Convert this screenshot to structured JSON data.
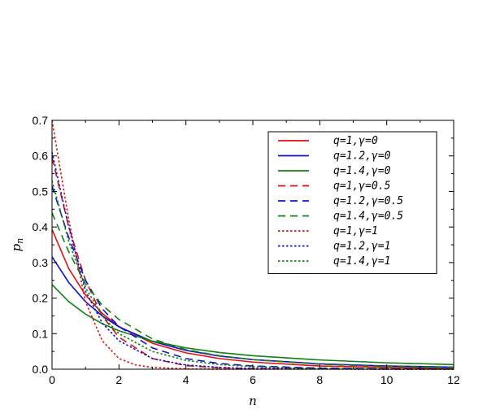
{
  "chart_data": {
    "type": "line",
    "xlabel": "n",
    "ylabel": "p",
    "ylabel_sub": "n",
    "xlim": [
      0,
      12
    ],
    "ylim": [
      0,
      0.7
    ],
    "xticks": [
      {
        "value": 0,
        "label": "0"
      },
      {
        "value": 2,
        "label": "2"
      },
      {
        "value": 4,
        "label": "4"
      },
      {
        "value": 6,
        "label": "6"
      },
      {
        "value": 8,
        "label": "8"
      },
      {
        "value": 10,
        "label": "10"
      },
      {
        "value": 12,
        "label": "12"
      }
    ],
    "yticks": [
      {
        "value": 0,
        "label": "0.0"
      },
      {
        "value": 0.1,
        "label": "0.1"
      },
      {
        "value": 0.2,
        "label": "0.2"
      },
      {
        "value": 0.3,
        "label": "0.3"
      },
      {
        "value": 0.4,
        "label": "0.4"
      },
      {
        "value": 0.5,
        "label": "0.5"
      },
      {
        "value": 0.6,
        "label": "0.6"
      },
      {
        "value": 0.7,
        "label": "0.7"
      }
    ],
    "grid": false,
    "legend_position": "top-right",
    "series": [
      {
        "name": "q=1,γ=0",
        "color": "#e01010",
        "dash": "solid",
        "x": [
          0,
          0.5,
          1,
          1.5,
          2,
          3,
          4,
          5,
          6,
          8,
          10,
          12
        ],
        "y": [
          0.393,
          0.283,
          0.209,
          0.157,
          0.12,
          0.073,
          0.046,
          0.03,
          0.02,
          0.009,
          0.005,
          0.002
        ]
      },
      {
        "name": "q=1.2,γ=0",
        "color": "#1010d0",
        "dash": "solid",
        "x": [
          0,
          0.5,
          1,
          1.5,
          2,
          3,
          4,
          5,
          6,
          8,
          10,
          12
        ],
        "y": [
          0.316,
          0.244,
          0.19,
          0.15,
          0.119,
          0.078,
          0.053,
          0.037,
          0.027,
          0.015,
          0.009,
          0.006
        ]
      },
      {
        "name": "q=1.4,γ=0",
        "color": "#108010",
        "dash": "solid",
        "x": [
          0,
          0.5,
          1,
          1.5,
          2,
          3,
          4,
          5,
          6,
          8,
          10,
          12
        ],
        "y": [
          0.238,
          0.19,
          0.155,
          0.128,
          0.108,
          0.079,
          0.06,
          0.047,
          0.038,
          0.026,
          0.018,
          0.013
        ]
      },
      {
        "name": "q=1,γ=0.5",
        "color": "#e01010",
        "dash": "dashed",
        "x": [
          0,
          0.5,
          1,
          1.5,
          2,
          3,
          4,
          5,
          6,
          8,
          10,
          12
        ],
        "y": [
          0.595,
          0.4,
          0.25,
          0.15,
          0.09,
          0.03,
          0.01,
          0.004,
          0.002,
          0.001,
          0,
          0
        ]
      },
      {
        "name": "q=1.2,γ=0.5",
        "color": "#1010d0",
        "dash": "dashed",
        "x": [
          0,
          0.5,
          1,
          1.5,
          2,
          3,
          4,
          5,
          6,
          8,
          10,
          12
        ],
        "y": [
          0.515,
          0.37,
          0.25,
          0.17,
          0.12,
          0.06,
          0.03,
          0.016,
          0.009,
          0.003,
          0.001,
          0.001
        ]
      },
      {
        "name": "q=1.4,γ=0.5",
        "color": "#108010",
        "dash": "dashed",
        "x": [
          0,
          0.5,
          1,
          1.5,
          2,
          3,
          4,
          5,
          6,
          8,
          10,
          12
        ],
        "y": [
          0.44,
          0.33,
          0.24,
          0.18,
          0.14,
          0.085,
          0.055,
          0.038,
          0.027,
          0.014,
          0.008,
          0.005
        ]
      },
      {
        "name": "q=1,γ=1",
        "color": "#e01010",
        "dash": "dotted",
        "x": [
          0,
          0.5,
          1,
          1.5,
          2,
          2.5,
          3,
          4,
          5,
          6,
          8,
          10,
          12
        ],
        "y": [
          0.7,
          0.42,
          0.19,
          0.08,
          0.03,
          0.012,
          0.005,
          0.001,
          0,
          0,
          0,
          0,
          0
        ]
      },
      {
        "name": "q=1.2,γ=1",
        "color": "#1010d0",
        "dash": "dotted",
        "x": [
          0,
          0.5,
          1,
          1.5,
          2,
          3,
          4,
          5,
          6,
          8,
          10,
          12
        ],
        "y": [
          0.61,
          0.4,
          0.22,
          0.13,
          0.08,
          0.03,
          0.012,
          0.005,
          0.002,
          0.001,
          0,
          0
        ]
      },
      {
        "name": "q=1.4,γ=1",
        "color": "#108010",
        "dash": "dotted",
        "x": [
          0,
          0.5,
          1,
          1.5,
          2,
          3,
          4,
          5,
          6,
          8,
          10,
          12
        ],
        "y": [
          0.53,
          0.36,
          0.23,
          0.15,
          0.1,
          0.05,
          0.025,
          0.013,
          0.007,
          0.002,
          0.001,
          0
        ]
      }
    ]
  }
}
